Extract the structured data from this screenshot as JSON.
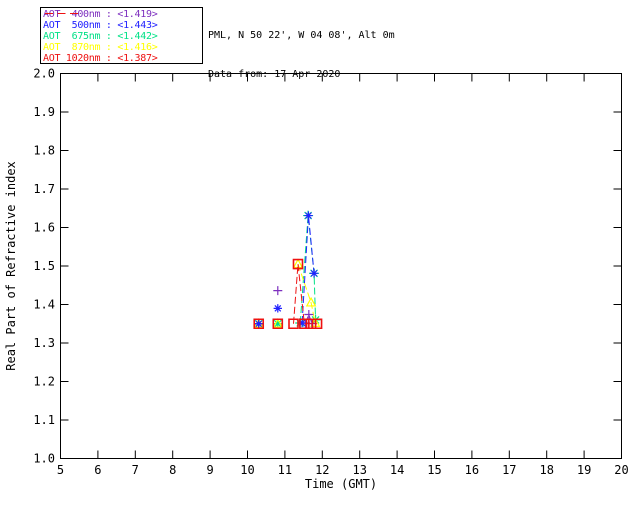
{
  "header": {
    "location": "PML, N 50 22', W 04 08', Alt 0m",
    "date_line": "Data from: 17 Apr 2020"
  },
  "legend": {
    "items": [
      {
        "key": "400nm",
        "label": "AOT  400nm : <1.419>",
        "color": "#7d2fbf"
      },
      {
        "key": "500nm",
        "label": "AOT  500nm : <1.443>",
        "color": "#2222ff"
      },
      {
        "key": "675nm",
        "label": "AOT  675nm : <1.442>",
        "color": "#00e187"
      },
      {
        "key": "870nm",
        "label": "AOT  870nm : <1.416>",
        "color": "#ffff00"
      },
      {
        "key": "1020nm",
        "label": "AOT 1020nm : <1.387>",
        "color": "#ee1111"
      }
    ]
  },
  "chart_data": {
    "type": "line",
    "title": "",
    "xlabel": "Time (GMT)",
    "ylabel": "Real Part of Refractive index",
    "xlim": [
      5,
      20
    ],
    "xtick_step": 1,
    "ylim": [
      1.0,
      2.0
    ],
    "ytick_step": 0.1,
    "grid": false,
    "legend_position": "top-left-outside",
    "line_style": "dashed",
    "series": [
      {
        "key": "675nm",
        "name": "AOT 675nm",
        "mean_label": "<1.442>",
        "color": "#00e187",
        "marker": "star",
        "isolated_points": [
          [
            10.3,
            1.35
          ],
          [
            10.81,
            1.35
          ]
        ],
        "line_points": [
          [
            11.41,
            1.352
          ],
          [
            11.62,
            1.631
          ],
          [
            11.78,
            1.481
          ],
          [
            11.82,
            1.36
          ]
        ]
      },
      {
        "key": "870nm",
        "name": "AOT 870nm",
        "mean_label": "<1.416>",
        "color": "#ffff00",
        "marker": "triangle",
        "isolated_points": [
          [
            10.3,
            1.35
          ],
          [
            10.81,
            1.35
          ]
        ],
        "line_points": [
          [
            11.35,
            1.505
          ],
          [
            11.7,
            1.405
          ],
          [
            11.81,
            1.352
          ]
        ]
      },
      {
        "key": "400nm",
        "name": "AOT 400nm",
        "mean_label": "<1.419>",
        "color": "#7d2fbf",
        "marker": "plus",
        "isolated_points": [
          [
            10.3,
            1.35
          ],
          [
            10.81,
            1.436
          ]
        ],
        "line_points": [
          [
            11.55,
            1.352
          ],
          [
            11.64,
            1.374
          ],
          [
            11.72,
            1.351
          ]
        ]
      },
      {
        "key": "500nm",
        "name": "AOT 500nm",
        "mean_label": "<1.443>",
        "color": "#2222ff",
        "marker": "asterisk",
        "isolated_points": [
          [
            10.3,
            1.35
          ],
          [
            10.81,
            1.39
          ]
        ],
        "line_points": [
          [
            11.46,
            1.352
          ],
          [
            11.63,
            1.631
          ],
          [
            11.78,
            1.481
          ]
        ]
      },
      {
        "key": "1020nm",
        "name": "AOT 1020nm",
        "mean_label": "<1.387>",
        "color": "#ee1111",
        "marker": "square",
        "isolated_points": [
          [
            10.3,
            1.35
          ],
          [
            10.81,
            1.35
          ]
        ],
        "line_points": [
          [
            11.23,
            1.35
          ],
          [
            11.35,
            1.505
          ],
          [
            11.52,
            1.35
          ],
          [
            11.7,
            1.35
          ],
          [
            11.86,
            1.35
          ]
        ]
      }
    ]
  }
}
